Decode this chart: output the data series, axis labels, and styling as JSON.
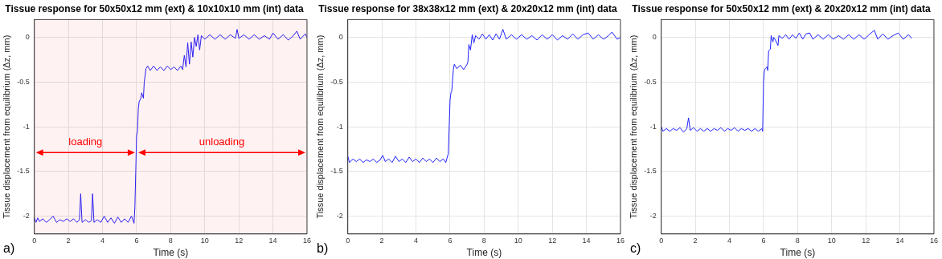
{
  "chart_data": [
    {
      "type": "line",
      "title": "Tissue response for 50x50x12 mm (ext) & 10x10x10 mm (int) data",
      "xlabel": "Time (s)",
      "ylabel": "Tissue displacement from equilibrium (Δz, mm)",
      "color": "#2020ff",
      "grid": true,
      "xlim": [
        0,
        16
      ],
      "xticks": [
        0,
        2,
        4,
        6,
        8,
        10,
        12,
        14,
        16
      ],
      "ylim": [
        -2.2,
        0.2
      ],
      "yticks": [
        -2,
        -1.5,
        -1,
        -0.5,
        0
      ],
      "x": [
        0,
        0.1,
        0.2,
        0.3,
        0.5,
        0.7,
        0.9,
        1.1,
        1.3,
        1.5,
        1.7,
        1.9,
        2.1,
        2.3,
        2.5,
        2.65,
        2.72,
        2.8,
        3.0,
        3.2,
        3.35,
        3.42,
        3.5,
        3.7,
        3.9,
        4.1,
        4.3,
        4.5,
        4.7,
        4.9,
        5.1,
        5.3,
        5.5,
        5.7,
        5.85,
        5.9,
        5.95,
        6.0,
        6.05,
        6.1,
        6.15,
        6.25,
        6.3,
        6.4,
        6.45,
        6.55,
        6.65,
        6.8,
        7.0,
        7.2,
        7.4,
        7.6,
        7.8,
        8.0,
        8.2,
        8.4,
        8.6,
        8.7,
        8.8,
        8.9,
        9.0,
        9.1,
        9.2,
        9.3,
        9.4,
        9.5,
        9.6,
        9.7,
        9.8,
        10.0,
        10.3,
        10.6,
        10.9,
        11.2,
        11.5,
        11.8,
        11.9,
        12.0,
        12.3,
        12.6,
        12.9,
        13.2,
        13.5,
        13.8,
        14.0,
        14.3,
        14.6,
        14.9,
        15.2,
        15.4,
        15.6,
        15.9,
        16.0
      ],
      "values": [
        -2.02,
        -2.07,
        -2.02,
        -2.06,
        -2.03,
        -2.07,
        -2.04,
        -2.0,
        -2.07,
        -2.04,
        -2.06,
        -2.03,
        -2.06,
        -2.03,
        -2.07,
        -2.04,
        -1.75,
        -2.07,
        -2.04,
        -2.07,
        -2.05,
        -1.75,
        -2.07,
        -2.04,
        -2.07,
        -2.0,
        -2.07,
        -2.02,
        -2.08,
        -2.01,
        -2.07,
        -2.03,
        -2.07,
        -2.0,
        -2.08,
        -1.9,
        -1.5,
        -1.1,
        -1.05,
        -0.8,
        -0.72,
        -0.68,
        -0.62,
        -0.68,
        -0.5,
        -0.35,
        -0.32,
        -0.37,
        -0.32,
        -0.37,
        -0.33,
        -0.37,
        -0.32,
        -0.36,
        -0.33,
        -0.37,
        -0.32,
        -0.36,
        -0.2,
        -0.33,
        -0.06,
        -0.3,
        -0.05,
        -0.22,
        0.0,
        -0.1,
        0.03,
        -0.14,
        0.02,
        -0.02,
        0.03,
        -0.02,
        0.03,
        -0.02,
        0.03,
        -0.01,
        0.09,
        -0.01,
        0.03,
        -0.02,
        0.03,
        -0.02,
        0.02,
        -0.02,
        0.05,
        -0.02,
        0.03,
        -0.03,
        0.02,
        0.07,
        -0.02,
        0.04,
        0.0
      ],
      "annotations": [
        "a)"
      ],
      "bands": [
        {
          "axis": "x",
          "from": 0,
          "to": 6,
          "label": "loading",
          "color": "#ff0000"
        },
        {
          "axis": "x",
          "from": 6,
          "to": 16,
          "label": "unloading",
          "color": "#ff0000"
        }
      ]
    },
    {
      "type": "line",
      "title": "Tissue response for 38x38x12 mm (ext) & 20x20x12 mm (int) data",
      "xlabel": "Time (s)",
      "ylabel": "Tissue displacement from equilibrium (Δz, mm)",
      "color": "#2020ff",
      "grid": true,
      "xlim": [
        0,
        16
      ],
      "xticks": [
        0,
        2,
        4,
        6,
        8,
        10,
        12,
        14,
        16
      ],
      "ylim": [
        -2.2,
        0.2
      ],
      "yticks": [
        -2,
        -1.5,
        -1,
        -0.5,
        0
      ],
      "x": [
        0,
        0.1,
        0.3,
        0.5,
        0.7,
        0.9,
        1.1,
        1.3,
        1.5,
        1.7,
        1.9,
        2.05,
        2.2,
        2.4,
        2.6,
        2.8,
        3.0,
        3.2,
        3.4,
        3.6,
        3.8,
        4.0,
        4.2,
        4.4,
        4.6,
        4.8,
        5.0,
        5.2,
        5.4,
        5.6,
        5.75,
        5.85,
        5.9,
        6.0,
        6.05,
        6.1,
        6.2,
        6.25,
        6.4,
        6.6,
        6.8,
        7.0,
        7.05,
        7.1,
        7.2,
        7.3,
        7.4,
        7.5,
        7.7,
        7.9,
        8.1,
        8.3,
        8.5,
        8.7,
        8.9,
        9.1,
        9.3,
        9.6,
        9.9,
        10.2,
        10.5,
        10.8,
        11.1,
        11.4,
        11.7,
        12.0,
        12.3,
        12.6,
        12.9,
        13.2,
        13.5,
        13.8,
        14.1,
        14.4,
        14.7,
        15.0,
        15.3,
        15.5,
        15.8,
        16.0
      ],
      "annotations": [
        "b)"
      ],
      "values": [
        -1.33,
        -1.4,
        -1.36,
        -1.39,
        -1.36,
        -1.4,
        -1.37,
        -1.39,
        -1.36,
        -1.4,
        -1.37,
        -1.32,
        -1.39,
        -1.36,
        -1.4,
        -1.33,
        -1.39,
        -1.36,
        -1.4,
        -1.34,
        -1.39,
        -1.36,
        -1.4,
        -1.35,
        -1.39,
        -1.36,
        -1.4,
        -1.35,
        -1.39,
        -1.36,
        -1.4,
        -1.33,
        -1.3,
        -0.7,
        -0.62,
        -0.6,
        -0.35,
        -0.3,
        -0.35,
        -0.31,
        -0.36,
        -0.3,
        -0.27,
        -0.08,
        -0.14,
        0.03,
        -0.06,
        0.02,
        -0.02,
        0.04,
        -0.02,
        0.03,
        -0.03,
        0.04,
        -0.02,
        0.09,
        -0.02,
        0.03,
        -0.02,
        0.03,
        -0.02,
        0.02,
        -0.03,
        0.03,
        -0.02,
        0.03,
        -0.03,
        0.02,
        -0.02,
        0.04,
        -0.02,
        0.03,
        0.05,
        -0.02,
        0.03,
        -0.02,
        0.02,
        0.06,
        -0.02,
        0.0
      ]
    },
    {
      "type": "line",
      "title": "Tissue response for 50x50x12 mm (ext) & 20x20x12 mm (int) data",
      "xlabel": "Time (s)",
      "ylabel": "Tissue displacement from equilibrium (Δz, mm)",
      "color": "#2020ff",
      "grid": true,
      "xlim": [
        0,
        16
      ],
      "xticks": [
        0,
        2,
        4,
        6,
        8,
        10,
        12,
        14,
        16
      ],
      "ylim": [
        -2.2,
        0.2
      ],
      "yticks": [
        -2,
        -1.5,
        -1,
        -0.5,
        0
      ],
      "x": [
        0,
        0.1,
        0.3,
        0.5,
        0.7,
        0.9,
        1.1,
        1.3,
        1.5,
        1.6,
        1.7,
        1.9,
        2.1,
        2.3,
        2.5,
        2.7,
        2.9,
        3.1,
        3.3,
        3.5,
        3.7,
        3.9,
        4.1,
        4.3,
        4.5,
        4.7,
        4.9,
        5.1,
        5.3,
        5.5,
        5.7,
        5.9,
        5.95,
        6.0,
        6.05,
        6.1,
        6.2,
        6.25,
        6.3,
        6.4,
        6.45,
        6.55,
        6.6,
        6.7,
        6.85,
        6.9,
        7.1,
        7.3,
        7.5,
        7.7,
        7.9,
        8.1,
        8.3,
        8.5,
        8.7,
        8.9,
        9.2,
        9.5,
        9.8,
        10.1,
        10.4,
        10.7,
        11.0,
        11.3,
        11.6,
        11.9,
        12.2,
        12.5,
        12.7,
        13.0,
        13.3,
        13.6,
        13.9,
        14.2,
        14.5,
        14.7
      ],
      "values": [
        -1.0,
        -1.05,
        -1.02,
        -1.05,
        -1.02,
        -1.04,
        -1.01,
        -1.06,
        -1.02,
        -0.9,
        -1.04,
        -1.01,
        -1.05,
        -1.02,
        -1.05,
        -1.02,
        -1.05,
        -1.02,
        -1.04,
        -1.01,
        -1.05,
        -1.02,
        -1.04,
        -1.01,
        -1.05,
        -1.02,
        -1.04,
        -1.02,
        -1.05,
        -1.02,
        -1.05,
        -1.02,
        -1.05,
        -0.5,
        -0.37,
        -0.35,
        -0.33,
        -0.37,
        -0.15,
        -0.13,
        0.02,
        -0.05,
        0.0,
        -0.03,
        -0.09,
        0.02,
        -0.01,
        0.03,
        -0.02,
        0.03,
        -0.01,
        0.05,
        -0.02,
        0.04,
        0.05,
        -0.02,
        0.03,
        -0.02,
        0.03,
        -0.02,
        0.02,
        -0.02,
        0.03,
        -0.02,
        0.03,
        -0.02,
        0.03,
        0.08,
        -0.02,
        0.04,
        -0.02,
        0.02,
        0.05,
        -0.02,
        0.03,
        -0.01
      ],
      "annotations": [
        "c)"
      ]
    }
  ]
}
